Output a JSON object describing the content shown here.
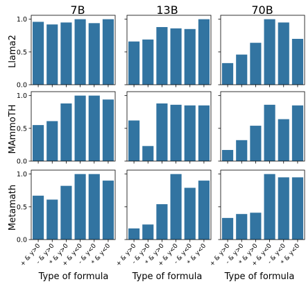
{
  "figure": {
    "bar_color": "#3274a1",
    "column_titles": [
      "7B",
      "13B",
      "70B"
    ],
    "row_labels": [
      "Llama2",
      "MAmmoTH",
      "Metamath"
    ],
    "x_label": "Type of formula"
  },
  "chart_data": [
    {
      "type": "bar",
      "title": "7B",
      "ylabel": "Llama2",
      "xlabel": "",
      "categories": [
        "+ & y>0",
        "- & y>0",
        "* & y>0",
        "+ & y<0",
        "- & y<0",
        "* & y<0"
      ],
      "values": [
        0.96,
        0.92,
        0.95,
        1.0,
        0.94,
        1.0
      ],
      "yticks": [
        "0.0",
        "0.5",
        "1.0"
      ],
      "ylim": [
        0,
        1.06
      ]
    },
    {
      "type": "bar",
      "title": "13B",
      "ylabel": "",
      "xlabel": "",
      "categories": [
        "+ & y>0",
        "- & y>0",
        "* & y>0",
        "+ & y<0",
        "- & y<0",
        "* & y<0"
      ],
      "values": [
        0.66,
        0.69,
        0.88,
        0.86,
        0.85,
        1.0
      ],
      "yticks": [],
      "ylim": [
        0,
        1.06
      ]
    },
    {
      "type": "bar",
      "title": "70B",
      "ylabel": "",
      "xlabel": "",
      "categories": [
        "+ & y>0",
        "- & y>0",
        "* & y>0",
        "+ & y<0",
        "- & y<0",
        "* & y<0"
      ],
      "values": [
        0.33,
        0.46,
        0.64,
        1.0,
        0.95,
        0.7
      ],
      "yticks": [],
      "ylim": [
        0,
        1.06
      ]
    },
    {
      "type": "bar",
      "title": "",
      "ylabel": "MAmmoTH",
      "xlabel": "",
      "categories": [
        "+ & y>0",
        "- & y>0",
        "* & y>0",
        "+ & y<0",
        "- & y<0",
        "* & y<0"
      ],
      "values": [
        0.55,
        0.61,
        0.88,
        1.0,
        1.0,
        0.94
      ],
      "yticks": [
        "0.0",
        "0.5",
        "1.0"
      ],
      "ylim": [
        0,
        1.06
      ]
    },
    {
      "type": "bar",
      "title": "",
      "ylabel": "",
      "xlabel": "",
      "categories": [
        "+ & y>0",
        "- & y>0",
        "* & y>0",
        "+ & y<0",
        "- & y<0",
        "* & y<0"
      ],
      "values": [
        0.62,
        0.23,
        0.88,
        0.86,
        0.85,
        0.85
      ],
      "yticks": [],
      "ylim": [
        0,
        1.06
      ]
    },
    {
      "type": "bar",
      "title": "",
      "ylabel": "",
      "xlabel": "",
      "categories": [
        "+ & y>0",
        "- & y>0",
        "* & y>0",
        "+ & y<0",
        "- & y<0",
        "* & y<0"
      ],
      "values": [
        0.17,
        0.32,
        0.54,
        0.86,
        0.64,
        0.85
      ],
      "yticks": [],
      "ylim": [
        0,
        1.06
      ]
    },
    {
      "type": "bar",
      "title": "",
      "ylabel": "Metamath",
      "xlabel": "Type of formula",
      "categories": [
        "+ & y>0",
        "- & y>0",
        "* & y>0",
        "+ & y<0",
        "- & y<0",
        "* & y<0"
      ],
      "values": [
        0.67,
        0.61,
        0.82,
        1.0,
        1.0,
        0.9
      ],
      "yticks": [
        "0.0",
        "0.5",
        "1.0"
      ],
      "ylim": [
        0,
        1.06
      ]
    },
    {
      "type": "bar",
      "title": "",
      "ylabel": "",
      "xlabel": "Type of formula",
      "categories": [
        "+ & y>0",
        "- & y>0",
        "* & y>0",
        "+ & y<0",
        "- & y<0",
        "* & y<0"
      ],
      "values": [
        0.17,
        0.23,
        0.54,
        1.0,
        0.79,
        0.9
      ],
      "yticks": [],
      "ylim": [
        0,
        1.06
      ]
    },
    {
      "type": "bar",
      "title": "",
      "ylabel": "",
      "xlabel": "Type of formula",
      "categories": [
        "+ & y>0",
        "- & y>0",
        "* & y>0",
        "+ & y<0",
        "- & y<0",
        "* & y<0"
      ],
      "values": [
        0.33,
        0.39,
        0.41,
        1.0,
        0.95,
        0.95
      ],
      "yticks": [],
      "ylim": [
        0,
        1.06
      ]
    }
  ]
}
